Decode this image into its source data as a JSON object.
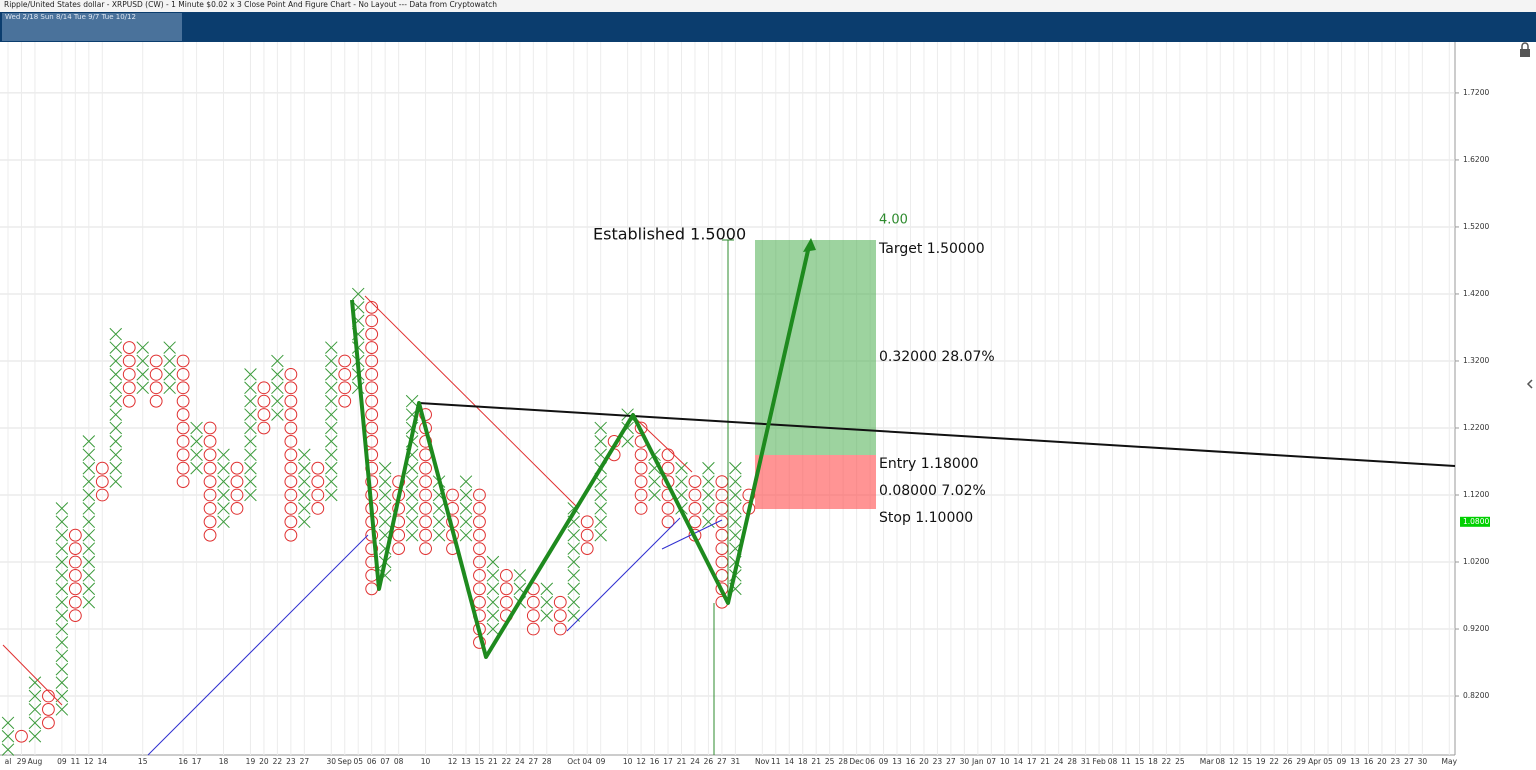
{
  "chart_data": {
    "type": "pointfigure",
    "title": "Ripple/United States dollar - XRPUSD (CW) - 1 Minute $0.02 x 3 Close Point And Figure Chart - No Layout --- Data from Cryptowatch",
    "navigator_label": "Wed 2/18  Sun 8/14  Tue 9/7  Tue 10/12",
    "box_size": 0.02,
    "x_color": "#3a9a3a",
    "o_color": "#e03030",
    "ylim": [
      0.732,
      1.796
    ],
    "yticks": [
      {
        "value": 0.82,
        "label": "0.8200"
      },
      {
        "value": 0.92,
        "label": "0.9200"
      },
      {
        "value": 1.02,
        "label": "1.0200"
      },
      {
        "value": 1.12,
        "label": "1.1200"
      },
      {
        "value": 1.22,
        "label": "1.2200"
      },
      {
        "value": 1.32,
        "label": "1.3200"
      },
      {
        "value": 1.42,
        "label": "1.4200"
      },
      {
        "value": 1.52,
        "label": "1.5200"
      },
      {
        "value": 1.62,
        "label": "1.6200"
      },
      {
        "value": 1.72,
        "label": "1.7200"
      }
    ],
    "last_price": {
      "value": 1.08,
      "label": "1.0800"
    },
    "grid": true,
    "categories": [
      "al",
      "29",
      "Aug",
      null,
      "09",
      "11",
      "12",
      "14",
      null,
      null,
      "15",
      null,
      null,
      "16",
      "17",
      null,
      "18",
      null,
      "19",
      "20",
      "22",
      "23",
      "27",
      null,
      "30",
      "Sep",
      "05",
      "06",
      "07",
      "08",
      null,
      "10",
      null,
      "12",
      "13",
      "15",
      "21",
      "22",
      "24",
      "27",
      "28",
      null,
      "Oct",
      "04",
      "09",
      null,
      "10",
      "12",
      "16",
      "17",
      "21",
      "24",
      "26",
      "27",
      "31",
      null,
      "Nov",
      "11",
      "14",
      "18",
      "21",
      "25",
      "28",
      "Dec",
      "06",
      "09",
      "13",
      "16",
      "20",
      "23",
      "27",
      "30",
      "Jan",
      "07",
      "10",
      "14",
      "17",
      "21",
      "24",
      "28",
      "31",
      "Feb",
      "08",
      "11",
      "15",
      "18",
      "22",
      "25",
      null,
      "Mar",
      "08",
      "12",
      "15",
      "19",
      "22",
      "26",
      "29",
      "Apr",
      "05",
      "09",
      "13",
      "16",
      "20",
      "23",
      "27",
      "30",
      null,
      "May"
    ],
    "columns": [
      {
        "type": "X",
        "low": 0.74,
        "high": 0.78
      },
      {
        "type": "O",
        "low": 0.76,
        "high": 0.76
      },
      {
        "type": "X",
        "low": 0.76,
        "high": 0.84
      },
      {
        "type": "O",
        "low": 0.78,
        "high": 0.82
      },
      {
        "type": "X",
        "low": 0.8,
        "high": 1.1
      },
      {
        "type": "O",
        "low": 0.94,
        "high": 1.06
      },
      {
        "type": "X",
        "low": 0.96,
        "high": 1.2
      },
      {
        "type": "O",
        "low": 1.12,
        "high": 1.16
      },
      {
        "type": "X",
        "low": 1.14,
        "high": 1.36
      },
      {
        "type": "O",
        "low": 1.26,
        "high": 1.34
      },
      {
        "type": "X",
        "low": 1.28,
        "high": 1.34
      },
      {
        "type": "O",
        "low": 1.26,
        "high": 1.32
      },
      {
        "type": "X",
        "low": 1.28,
        "high": 1.34
      },
      {
        "type": "O",
        "low": 1.14,
        "high": 1.32
      },
      {
        "type": "X",
        "low": 1.16,
        "high": 1.22
      },
      {
        "type": "O",
        "low": 1.06,
        "high": 1.22
      },
      {
        "type": "X",
        "low": 1.08,
        "high": 1.18
      },
      {
        "type": "O",
        "low": 1.1,
        "high": 1.16
      },
      {
        "type": "X",
        "low": 1.12,
        "high": 1.3
      },
      {
        "type": "O",
        "low": 1.22,
        "high": 1.28
      },
      {
        "type": "X",
        "low": 1.24,
        "high": 1.32
      },
      {
        "type": "O",
        "low": 1.06,
        "high": 1.3
      },
      {
        "type": "X",
        "low": 1.08,
        "high": 1.18
      },
      {
        "type": "O",
        "low": 1.1,
        "high": 1.16
      },
      {
        "type": "X",
        "low": 1.12,
        "high": 1.34
      },
      {
        "type": "O",
        "low": 1.26,
        "high": 1.32
      },
      {
        "type": "X",
        "low": 1.28,
        "high": 1.42
      },
      {
        "type": "O",
        "low": 0.98,
        "high": 1.4
      },
      {
        "type": "X",
        "low": 1.0,
        "high": 1.16
      },
      {
        "type": "O",
        "low": 1.04,
        "high": 1.14
      },
      {
        "type": "X",
        "low": 1.06,
        "high": 1.26
      },
      {
        "type": "O",
        "low": 1.04,
        "high": 1.24
      },
      {
        "type": "X",
        "low": 1.06,
        "high": 1.14
      },
      {
        "type": "O",
        "low": 1.04,
        "high": 1.12
      },
      {
        "type": "X",
        "low": 1.06,
        "high": 1.14
      },
      {
        "type": "O",
        "low": 0.9,
        "high": 1.12
      },
      {
        "type": "X",
        "low": 0.92,
        "high": 1.02
      },
      {
        "type": "O",
        "low": 0.94,
        "high": 1.0
      },
      {
        "type": "X",
        "low": 0.96,
        "high": 1.0
      },
      {
        "type": "O",
        "low": 0.92,
        "high": 0.98
      },
      {
        "type": "X",
        "low": 0.94,
        "high": 0.98
      },
      {
        "type": "O",
        "low": 0.92,
        "high": 0.96
      },
      {
        "type": "X",
        "low": 0.94,
        "high": 1.1
      },
      {
        "type": "O",
        "low": 1.04,
        "high": 1.08
      },
      {
        "type": "X",
        "low": 1.06,
        "high": 1.22
      },
      {
        "type": "O",
        "low": 1.18,
        "high": 1.2
      },
      {
        "type": "X",
        "low": 1.2,
        "high": 1.24
      },
      {
        "type": "O",
        "low": 1.1,
        "high": 1.22
      },
      {
        "type": "X",
        "low": 1.12,
        "high": 1.18
      },
      {
        "type": "O",
        "low": 1.08,
        "high": 1.18
      },
      {
        "type": "X",
        "low": 1.1,
        "high": 1.16
      },
      {
        "type": "O",
        "low": 1.06,
        "high": 1.14
      },
      {
        "type": "X",
        "low": 1.08,
        "high": 1.16
      },
      {
        "type": "O",
        "low": 0.96,
        "high": 1.14
      },
      {
        "type": "X",
        "low": 0.98,
        "high": 1.16
      },
      {
        "type": "O",
        "low": 1.1,
        "high": 1.12
      }
    ],
    "position": {
      "established": {
        "value": 1.5,
        "label": "Established 1.5000"
      },
      "ratio": {
        "value": 4,
        "label": "4.00"
      },
      "target": {
        "value": 1.5,
        "label": "Target  1.50000"
      },
      "reward": {
        "value": 0.32,
        "label": "0.32000  28.07%"
      },
      "entry": {
        "value": 1.18,
        "label": "Entry  1.18000"
      },
      "risk": {
        "value": 0.08,
        "label": "0.08000  7.02%"
      },
      "stop": {
        "value": 1.1,
        "label": "Stop  1.10000"
      }
    }
  }
}
